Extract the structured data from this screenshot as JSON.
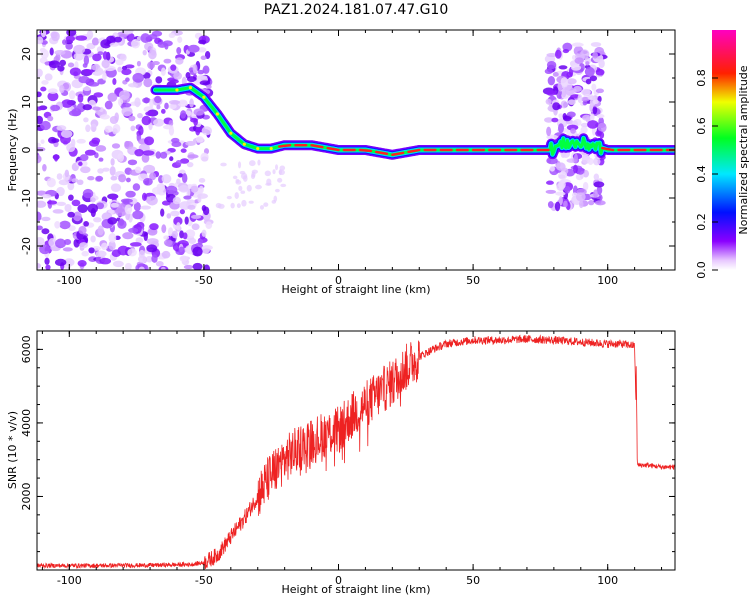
{
  "title": "PAZ1.2024.181.07.47.G10",
  "chart_data": [
    {
      "type": "heatmap",
      "xlabel": "Height of straight line (km)",
      "ylabel": "Frequency (Hz)",
      "xlim": [
        -112,
        125
      ],
      "ylim": [
        -25,
        25
      ],
      "xticks": [
        -100,
        -50,
        0,
        50,
        100
      ],
      "yticks": [
        -20,
        -10,
        0,
        10,
        20
      ],
      "grid": false,
      "colorbar": {
        "label": "Normalized spectral amplitude",
        "range": [
          0,
          1
        ],
        "ticks": [
          0.0,
          0.2,
          0.4,
          0.6,
          0.8
        ],
        "colormap": "rainbow (white-violet-blue-cyan-green-yellow-red-magenta)"
      },
      "signal_trace": {
        "x": [
          -68,
          -60,
          -55,
          -50,
          -45,
          -40,
          -35,
          -30,
          -25,
          -20,
          -10,
          0,
          10,
          20,
          30,
          50,
          78,
          85,
          95,
          100,
          125
        ],
        "y": [
          12.5,
          12.5,
          13,
          11,
          7.5,
          3.5,
          1.2,
          0.3,
          0.3,
          1,
          1,
          0,
          0,
          -1,
          0,
          0,
          0,
          1.5,
          1,
          0,
          0
        ]
      },
      "noise_regions": [
        {
          "x": [
            -112,
            -48
          ],
          "y": [
            -25,
            25
          ]
        },
        {
          "x": [
            78,
            98
          ],
          "y": [
            -12,
            22
          ]
        }
      ]
    },
    {
      "type": "line",
      "xlabel": "Height of straight line (km)",
      "ylabel": "SNR (10 * v/v)",
      "xlim": [
        -112,
        125
      ],
      "ylim": [
        0,
        6500
      ],
      "xticks": [
        -100,
        -50,
        0,
        50,
        100
      ],
      "yticks": [
        2000,
        4000,
        6000
      ],
      "grid": false,
      "color": "#ee2222",
      "series": [
        {
          "x": [
            -112,
            -90,
            -70,
            -55,
            -50,
            -45,
            -40,
            -35,
            -30,
            -25,
            -20,
            -15,
            -10,
            -5,
            0,
            5,
            10,
            15,
            20,
            25,
            30,
            35,
            40,
            50,
            60,
            70,
            80,
            90,
            100,
            105,
            110,
            111,
            115,
            120,
            125
          ],
          "y": [
            120,
            120,
            130,
            150,
            200,
            400,
            900,
            1400,
            2000,
            2600,
            3000,
            3300,
            3500,
            3700,
            3800,
            4200,
            4500,
            4800,
            5100,
            5500,
            5800,
            6000,
            6150,
            6250,
            6250,
            6280,
            6250,
            6200,
            6150,
            6150,
            6100,
            2850,
            2850,
            2800,
            2800
          ]
        }
      ]
    }
  ]
}
